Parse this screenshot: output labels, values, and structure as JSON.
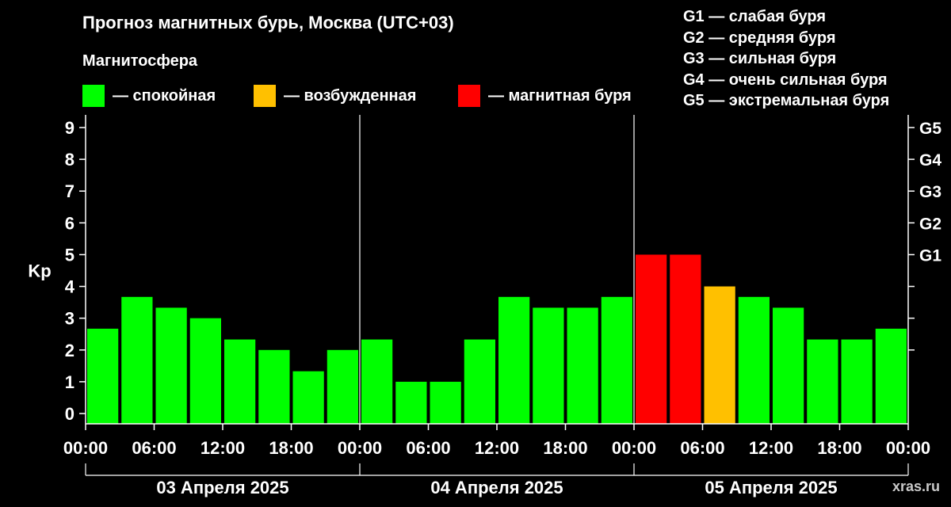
{
  "title": "Прогноз магнитных бурь, Москва (UTC+03)",
  "subtitle": "Магнитосфера",
  "legend": [
    {
      "label": "— спокойная",
      "color": "#00ff00"
    },
    {
      "label": "— возбужденная",
      "color": "#ffc000"
    },
    {
      "label": "— магнитная буря",
      "color": "#ff0000"
    }
  ],
  "g_legend": [
    "G1 — слабая буря",
    "G2 — средняя буря",
    "G3 — сильная буря",
    "G4 — очень сильная буря",
    "G5 — экстремальная буря"
  ],
  "watermark": "xras.ru",
  "chart_data": {
    "type": "bar",
    "ylabel": "Kp",
    "ylim": [
      0,
      9
    ],
    "yticks": [
      0,
      1,
      2,
      3,
      4,
      5,
      6,
      7,
      8,
      9
    ],
    "right_axis_labels": [
      {
        "kp": 5,
        "label": "G1"
      },
      {
        "kp": 6,
        "label": "G2"
      },
      {
        "kp": 7,
        "label": "G3"
      },
      {
        "kp": 8,
        "label": "G4"
      },
      {
        "kp": 9,
        "label": "G5"
      }
    ],
    "x_tick_labels": [
      "00:00",
      "06:00",
      "12:00",
      "18:00",
      "00:00",
      "06:00",
      "12:00",
      "18:00",
      "00:00",
      "06:00",
      "12:00",
      "18:00",
      "00:00"
    ],
    "days": [
      "03 Апреля 2025",
      "04 Апреля 2025",
      "05 Апреля 2025"
    ],
    "colors": {
      "calm": "#00ff00",
      "excited": "#ffc000",
      "storm": "#ff0000"
    },
    "values": [
      2.67,
      3.67,
      3.33,
      3.0,
      2.33,
      2.0,
      1.33,
      2.0,
      2.33,
      1.0,
      1.0,
      2.33,
      3.67,
      3.33,
      3.33,
      3.67,
      5.0,
      5.0,
      4.0,
      3.67,
      3.33,
      2.33,
      2.33,
      2.67
    ],
    "bar_states": [
      "calm",
      "calm",
      "calm",
      "calm",
      "calm",
      "calm",
      "calm",
      "calm",
      "calm",
      "calm",
      "calm",
      "calm",
      "calm",
      "calm",
      "calm",
      "calm",
      "storm",
      "storm",
      "excited",
      "calm",
      "calm",
      "calm",
      "calm",
      "calm"
    ],
    "grid": false
  }
}
